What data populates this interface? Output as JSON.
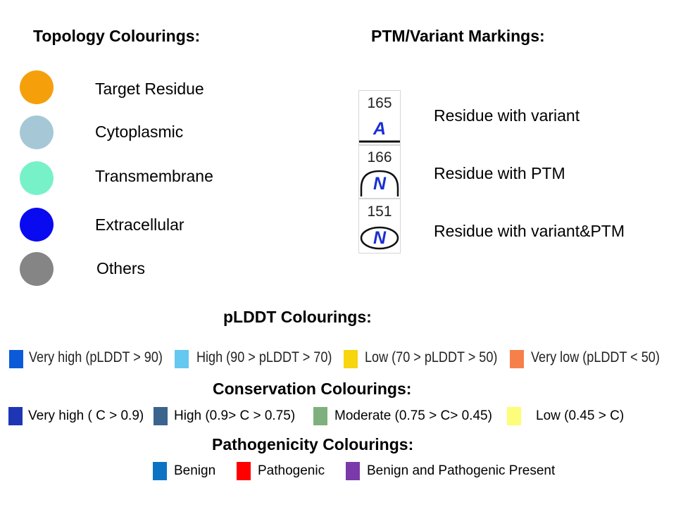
{
  "topology": {
    "heading": "Topology Colourings:",
    "items": [
      {
        "label": "Target Residue",
        "color": "#f5a00a"
      },
      {
        "label": "Cytoplasmic",
        "color": "#a6c8d6"
      },
      {
        "label": "Transmembrane",
        "color": "#77f2c8"
      },
      {
        "label": "Extracellular",
        "color": "#0a0af0"
      },
      {
        "label": "Others",
        "color": "#858585"
      }
    ]
  },
  "ptm": {
    "heading": "PTM/Variant Markings:",
    "items": [
      {
        "number": "165",
        "letter": "A",
        "label": "Residue with variant",
        "marking": "variant"
      },
      {
        "number": "166",
        "letter": "N",
        "label": "Residue with PTM",
        "marking": "ptm"
      },
      {
        "number": "151",
        "letter": "N",
        "label": "Residue with variant&PTM",
        "marking": "variant-and-ptm"
      }
    ]
  },
  "plddt": {
    "heading": "pLDDT Colourings:",
    "items": [
      {
        "label": "Very high (pLDDT > 90)",
        "color": "#0b5bd8"
      },
      {
        "label": "High (90 > pLDDT > 70)",
        "color": "#64c8f0"
      },
      {
        "label": "Low (70 > pLDDT > 50)",
        "color": "#f7d50f"
      },
      {
        "label": "Very low (pLDDT < 50)",
        "color": "#f7804a"
      }
    ]
  },
  "conservation": {
    "heading": "Conservation Colourings:",
    "items": [
      {
        "label": "Very high ( C > 0.9)",
        "color": "#1e35b6"
      },
      {
        "label": "High (0.9> C > 0.75)",
        "color": "#3a638d"
      },
      {
        "label": "Moderate (0.75 > C> 0.45)",
        "color": "#7db07d"
      },
      {
        "label": "Low (0.45 > C)",
        "color": "#fdfd7a"
      }
    ]
  },
  "pathogenicity": {
    "heading": "Pathogenicity Colourings:",
    "items": [
      {
        "label": "Benign",
        "color": "#0c73c4"
      },
      {
        "label": "Pathogenic",
        "color": "#fe0000"
      },
      {
        "label": "Benign and Pathogenic Present",
        "color": "#7a3aaa"
      }
    ]
  }
}
